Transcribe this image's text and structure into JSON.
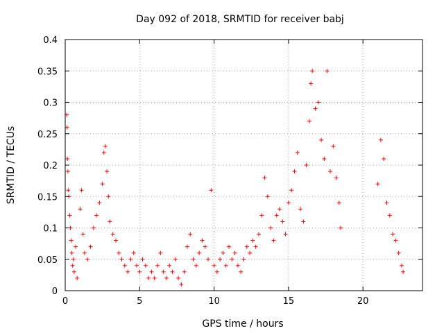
{
  "chart_data": {
    "type": "scatter",
    "title": "Day 092 of 2018, SRMTID for receiver babj",
    "xlabel": "GPS time / hours",
    "ylabel": "SRMTID / TECUs",
    "xlim": [
      0,
      24
    ],
    "ylim": [
      0,
      0.4
    ],
    "x_ticks": [
      0,
      5,
      10,
      15,
      20
    ],
    "x_tick_labels": [
      "0",
      "5",
      "10",
      "15",
      "20"
    ],
    "y_ticks": [
      0,
      0.05,
      0.1,
      0.15,
      0.2,
      0.25,
      0.3,
      0.35,
      0.4
    ],
    "y_tick_labels": [
      "0",
      "0.05",
      "0.1",
      "0.15",
      "0.2",
      "0.25",
      "0.3",
      "0.35",
      "0.4"
    ],
    "grid": true,
    "marker": "+",
    "colors": {
      "points": "#ff0000",
      "grid": "#a0a0a0",
      "axes": "#000000"
    },
    "series": [
      {
        "name": "SRMTID",
        "points": [
          [
            0.1,
            0.28
          ],
          [
            0.12,
            0.26
          ],
          [
            0.15,
            0.21
          ],
          [
            0.18,
            0.19
          ],
          [
            0.2,
            0.16
          ],
          [
            0.25,
            0.15
          ],
          [
            0.3,
            0.12
          ],
          [
            0.35,
            0.1
          ],
          [
            0.4,
            0.08
          ],
          [
            0.45,
            0.06
          ],
          [
            0.5,
            0.04
          ],
          [
            0.55,
            0.05
          ],
          [
            0.6,
            0.03
          ],
          [
            0.7,
            0.07
          ],
          [
            0.8,
            0.02
          ],
          [
            1.0,
            0.13
          ],
          [
            1.1,
            0.16
          ],
          [
            1.2,
            0.09
          ],
          [
            1.3,
            0.06
          ],
          [
            1.5,
            0.05
          ],
          [
            1.7,
            0.07
          ],
          [
            1.9,
            0.1
          ],
          [
            2.1,
            0.12
          ],
          [
            2.3,
            0.14
          ],
          [
            2.5,
            0.17
          ],
          [
            2.6,
            0.22
          ],
          [
            2.7,
            0.23
          ],
          [
            2.8,
            0.19
          ],
          [
            2.9,
            0.15
          ],
          [
            3.0,
            0.11
          ],
          [
            3.2,
            0.09
          ],
          [
            3.4,
            0.08
          ],
          [
            3.6,
            0.06
          ],
          [
            3.8,
            0.05
          ],
          [
            4.0,
            0.04
          ],
          [
            4.2,
            0.03
          ],
          [
            4.4,
            0.05
          ],
          [
            4.6,
            0.06
          ],
          [
            4.8,
            0.04
          ],
          [
            5.0,
            0.03
          ],
          [
            5.2,
            0.05
          ],
          [
            5.4,
            0.04
          ],
          [
            5.6,
            0.02
          ],
          [
            5.8,
            0.03
          ],
          [
            6.0,
            0.02
          ],
          [
            6.2,
            0.04
          ],
          [
            6.4,
            0.06
          ],
          [
            6.6,
            0.03
          ],
          [
            6.8,
            0.02
          ],
          [
            7.0,
            0.04
          ],
          [
            7.2,
            0.03
          ],
          [
            7.4,
            0.05
          ],
          [
            7.6,
            0.02
          ],
          [
            7.8,
            0.01
          ],
          [
            8.0,
            0.03
          ],
          [
            8.2,
            0.07
          ],
          [
            8.4,
            0.09
          ],
          [
            8.6,
            0.05
          ],
          [
            8.8,
            0.04
          ],
          [
            9.0,
            0.06
          ],
          [
            9.2,
            0.08
          ],
          [
            9.4,
            0.07
          ],
          [
            9.6,
            0.05
          ],
          [
            9.8,
            0.16
          ],
          [
            10.0,
            0.04
          ],
          [
            10.2,
            0.03
          ],
          [
            10.4,
            0.05
          ],
          [
            10.6,
            0.06
          ],
          [
            10.8,
            0.04
          ],
          [
            11.0,
            0.07
          ],
          [
            11.2,
            0.05
          ],
          [
            11.4,
            0.06
          ],
          [
            11.6,
            0.04
          ],
          [
            11.8,
            0.03
          ],
          [
            12.0,
            0.05
          ],
          [
            12.2,
            0.07
          ],
          [
            12.4,
            0.06
          ],
          [
            12.6,
            0.08
          ],
          [
            12.8,
            0.07
          ],
          [
            13.0,
            0.09
          ],
          [
            13.2,
            0.12
          ],
          [
            13.4,
            0.18
          ],
          [
            13.6,
            0.15
          ],
          [
            13.8,
            0.1
          ],
          [
            14.0,
            0.08
          ],
          [
            14.2,
            0.12
          ],
          [
            14.4,
            0.13
          ],
          [
            14.6,
            0.11
          ],
          [
            14.8,
            0.09
          ],
          [
            15.0,
            0.14
          ],
          [
            15.2,
            0.16
          ],
          [
            15.4,
            0.19
          ],
          [
            15.6,
            0.22
          ],
          [
            15.8,
            0.13
          ],
          [
            16.0,
            0.11
          ],
          [
            16.2,
            0.2
          ],
          [
            16.4,
            0.27
          ],
          [
            16.5,
            0.33
          ],
          [
            16.6,
            0.35
          ],
          [
            16.8,
            0.29
          ],
          [
            17.0,
            0.3
          ],
          [
            17.2,
            0.24
          ],
          [
            17.4,
            0.21
          ],
          [
            17.6,
            0.35
          ],
          [
            17.8,
            0.19
          ],
          [
            18.0,
            0.23
          ],
          [
            18.2,
            0.18
          ],
          [
            18.4,
            0.14
          ],
          [
            18.5,
            0.1
          ],
          [
            21.0,
            0.17
          ],
          [
            21.2,
            0.24
          ],
          [
            21.4,
            0.21
          ],
          [
            21.6,
            0.14
          ],
          [
            21.8,
            0.12
          ],
          [
            22.0,
            0.09
          ],
          [
            22.2,
            0.08
          ],
          [
            22.4,
            0.06
          ],
          [
            22.6,
            0.04
          ],
          [
            22.7,
            0.03
          ]
        ]
      }
    ]
  }
}
